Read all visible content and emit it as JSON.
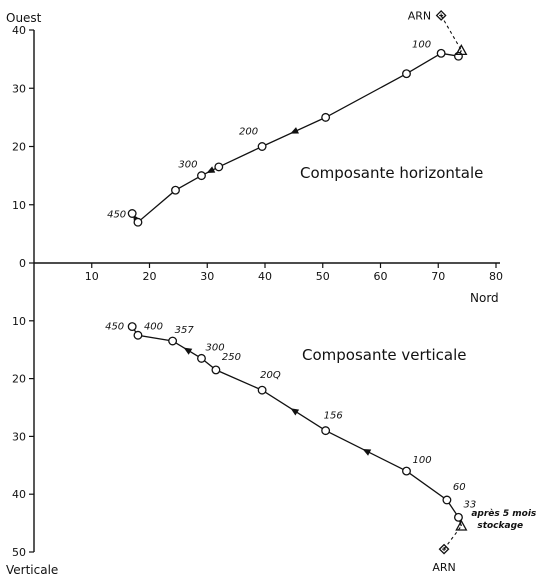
{
  "chart_data": {
    "type": "line",
    "x_axis": {
      "label": "Nord",
      "range": [
        0,
        80
      ],
      "ticks": [
        10,
        20,
        30,
        40,
        50,
        60,
        70,
        80
      ]
    },
    "y_axis_up": {
      "label": "Ouest",
      "range": [
        0,
        40
      ],
      "ticks": [
        0,
        10,
        20,
        30,
        40
      ]
    },
    "y_axis_down": {
      "label": "Verticale",
      "range": [
        0,
        50
      ],
      "ticks": [
        10,
        20,
        30,
        40,
        50
      ]
    },
    "horizontal": {
      "name": "Composante horizontale",
      "points": [
        {
          "x": 73.5,
          "y": 35.5,
          "label": ""
        },
        {
          "x": 70.5,
          "y": 36.0,
          "label": "100"
        },
        {
          "x": 64.5,
          "y": 32.5,
          "label": ""
        },
        {
          "x": 50.5,
          "y": 25.0,
          "label": ""
        },
        {
          "x": 39.5,
          "y": 20.0,
          "label": "200"
        },
        {
          "x": 32.0,
          "y": 16.5,
          "label": ""
        },
        {
          "x": 29.0,
          "y": 15.0,
          "label": "300"
        },
        {
          "x": 24.5,
          "y": 12.5,
          "label": ""
        },
        {
          "x": 18.0,
          "y": 7.0,
          "label": ""
        },
        {
          "x": 17.0,
          "y": 8.5,
          "label": "450"
        }
      ],
      "arn": {
        "x": 70.5,
        "y": 42.5,
        "label": "ARN"
      },
      "storage": {
        "x": 74.0,
        "y": 36.5
      }
    },
    "vertical": {
      "name": "Composante verticale",
      "points": [
        {
          "x": 73.5,
          "y": 44.0,
          "label": "33"
        },
        {
          "x": 71.5,
          "y": 41.0,
          "label": "60"
        },
        {
          "x": 64.5,
          "y": 36.0,
          "label": "100"
        },
        {
          "x": 50.5,
          "y": 29.0,
          "label": "156"
        },
        {
          "x": 39.5,
          "y": 22.0,
          "label": "20Q"
        },
        {
          "x": 31.5,
          "y": 18.5,
          "label": "250"
        },
        {
          "x": 29.0,
          "y": 16.5,
          "label": "300"
        },
        {
          "x": 24.0,
          "y": 13.5,
          "label": "357"
        },
        {
          "x": 18.0,
          "y": 12.5,
          "label": "400"
        },
        {
          "x": 17.0,
          "y": 11.0,
          "label": "450"
        }
      ],
      "arn": {
        "x": 71.0,
        "y": 49.5,
        "label": "ARN"
      },
      "storage": {
        "x": 74.0,
        "y": 45.5
      },
      "storage_note": [
        "après 5 mois",
        "stockage"
      ]
    }
  }
}
